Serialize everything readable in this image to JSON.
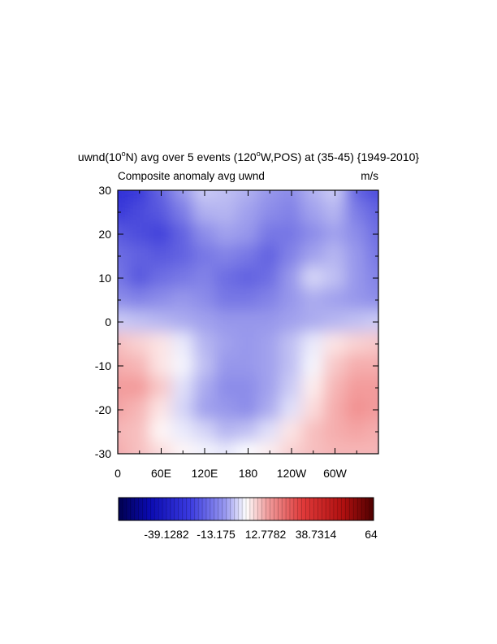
{
  "chart_data": {
    "type": "heatmap",
    "title": "uwnd(10",
    "title_sup1": "o",
    "title_mid": "N) avg over 5 events (120",
    "title_sup2": "o",
    "title_end": "W,POS) at (35-45) {1949-2010}",
    "subtitle_left": "Composite anomaly avg uwnd",
    "subtitle_right": "m/s",
    "x_ticks": [
      "0",
      "60E",
      "120E",
      "180",
      "120W",
      "60W"
    ],
    "y_ticks": [
      "30",
      "20",
      "10",
      "0",
      "-10",
      "-20",
      "-30"
    ],
    "xlim": [
      0,
      360
    ],
    "ylim": [
      -30,
      30
    ],
    "colorbar": {
      "labels": [
        "-39.1282",
        "-13.175",
        "12.7782",
        "38.7314",
        "64"
      ],
      "min_color": "#0a0a5a",
      "mid_color": "#ffffff",
      "max_color": "#5a0a0a",
      "negative_color": "#1414d2",
      "positive_color": "#e03030"
    },
    "pattern_description_values": {
      "cols_x": [
        0,
        30,
        60,
        90,
        120,
        150,
        180,
        210,
        240,
        270,
        300,
        330,
        360
      ],
      "rows_y": [
        30,
        25,
        20,
        15,
        10,
        5,
        0,
        -5,
        -10,
        -15,
        -20,
        -25,
        -30
      ],
      "z": [
        [
          -40,
          -38,
          -30,
          -20,
          -10,
          -12,
          -15,
          -20,
          -22,
          -15,
          -10,
          -30,
          -35
        ],
        [
          -38,
          -35,
          -32,
          -25,
          -15,
          -14,
          -18,
          -22,
          -24,
          -18,
          -14,
          -25,
          -30
        ],
        [
          -32,
          -34,
          -36,
          -30,
          -22,
          -18,
          -20,
          -26,
          -26,
          -22,
          -18,
          -22,
          -28
        ],
        [
          -28,
          -30,
          -32,
          -30,
          -26,
          -24,
          -26,
          -30,
          -24,
          -18,
          -14,
          -20,
          -26
        ],
        [
          -26,
          -32,
          -28,
          -26,
          -24,
          -28,
          -30,
          -28,
          -20,
          -8,
          -12,
          -20,
          -24
        ],
        [
          -22,
          -24,
          -22,
          -20,
          -22,
          -26,
          -26,
          -24,
          -20,
          -16,
          -18,
          -20,
          -22
        ],
        [
          -10,
          -12,
          -14,
          -16,
          -18,
          -20,
          -20,
          -20,
          -18,
          -16,
          -14,
          -12,
          -10
        ],
        [
          14,
          10,
          6,
          -4,
          -14,
          -18,
          -20,
          -18,
          -12,
          -4,
          6,
          10,
          12
        ],
        [
          18,
          16,
          6,
          -2,
          -12,
          -20,
          -20,
          -18,
          -12,
          -2,
          12,
          18,
          18
        ],
        [
          22,
          22,
          12,
          -6,
          -16,
          -22,
          -22,
          -18,
          -10,
          4,
          16,
          22,
          22
        ],
        [
          20,
          16,
          6,
          -8,
          -18,
          -20,
          -22,
          -16,
          -6,
          8,
          18,
          24,
          22
        ],
        [
          16,
          14,
          2,
          -4,
          -8,
          -14,
          -12,
          -6,
          6,
          14,
          18,
          20,
          18
        ],
        [
          18,
          14,
          8,
          2,
          -2,
          -4,
          0,
          4,
          10,
          14,
          16,
          16,
          16
        ]
      ]
    }
  }
}
